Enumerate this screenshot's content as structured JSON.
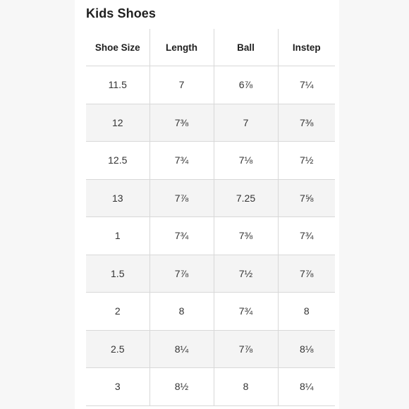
{
  "title": "Kids Shoes",
  "table": {
    "headers": [
      "Shoe Size",
      "Length",
      "Ball",
      "Instep"
    ],
    "rows": [
      [
        "11.5",
        "7",
        "6⅞",
        "7¼"
      ],
      [
        "12",
        "7⅜",
        "7",
        "7⅜"
      ],
      [
        "12.5",
        "7¾",
        "7⅛",
        "7½"
      ],
      [
        "13",
        "7⅞",
        "7.25",
        "7⅝"
      ],
      [
        "1",
        "7¾",
        "7⅜",
        "7¾"
      ],
      [
        "1.5",
        "7⅞",
        "7½",
        "7⅞"
      ],
      [
        "2",
        "8",
        "7¾",
        "8"
      ],
      [
        "2.5",
        "8¼",
        "7⅞",
        "8⅛"
      ],
      [
        "3",
        "8½",
        "8",
        "8¼"
      ]
    ]
  },
  "colors": {
    "header_text": "#1f1f1f",
    "cell_text": "#333333",
    "alt_row_bg": "#f4f4f4",
    "grid_line": "#d8d8d8",
    "side_pane_bg": "#f7f7f7"
  }
}
